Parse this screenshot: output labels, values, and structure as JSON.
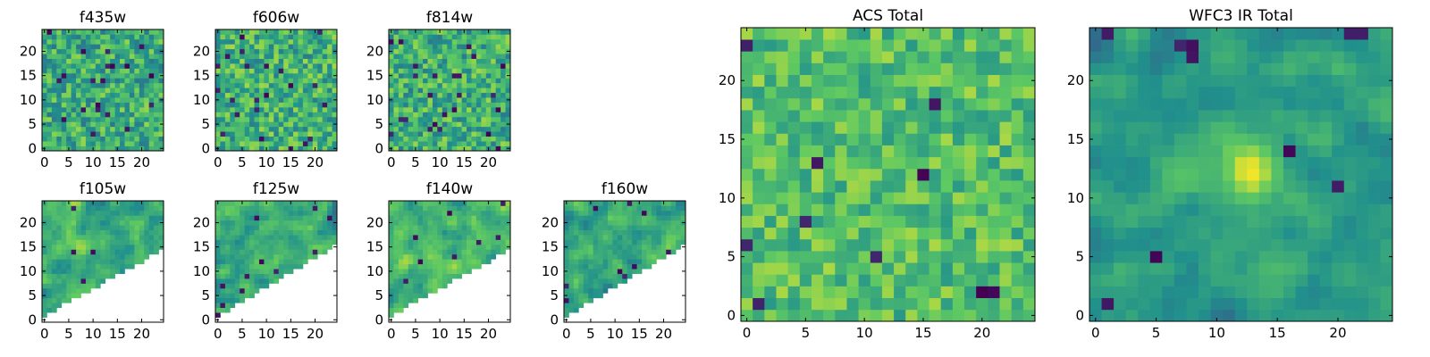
{
  "figure": {
    "colormap": "viridis",
    "colormap_stops": [
      "#440154",
      "#3b528b",
      "#21918c",
      "#5ec962",
      "#fde725"
    ]
  },
  "chart_data": [
    {
      "type": "heatmap",
      "title": "f435w",
      "grid": [
        25,
        25
      ],
      "xticks": [
        0,
        5,
        10,
        15,
        20
      ],
      "yticks": [
        0,
        5,
        10,
        15,
        20
      ],
      "seed": 11,
      "mean": 0.62,
      "noise": 0.22,
      "smooth": 0,
      "dark_fraction": 0.03,
      "mask": "none"
    },
    {
      "type": "heatmap",
      "title": "f606w",
      "grid": [
        25,
        25
      ],
      "xticks": [
        0,
        5,
        10,
        15,
        20
      ],
      "yticks": [
        0,
        5,
        10,
        15,
        20
      ],
      "seed": 23,
      "mean": 0.64,
      "noise": 0.22,
      "smooth": 0,
      "dark_fraction": 0.035,
      "mask": "none"
    },
    {
      "type": "heatmap",
      "title": "f814w",
      "grid": [
        25,
        25
      ],
      "xticks": [
        0,
        5,
        10,
        15,
        20
      ],
      "yticks": [
        0,
        5,
        10,
        15,
        20
      ],
      "seed": 37,
      "mean": 0.63,
      "noise": 0.22,
      "smooth": 0,
      "dark_fraction": 0.03,
      "mask": "none"
    },
    {
      "type": "heatmap",
      "title": "f105w",
      "grid": [
        25,
        25
      ],
      "xticks": [
        0,
        5,
        10,
        15,
        20
      ],
      "yticks": [
        0,
        5,
        10,
        15,
        20
      ],
      "seed": 41,
      "mean": 0.62,
      "noise": 0.2,
      "smooth": 1,
      "dark_fraction": 0.015,
      "mask": "lower-right-triangle",
      "mask_line": [
        [
          0,
          1
        ],
        [
          25,
          15
        ]
      ]
    },
    {
      "type": "heatmap",
      "title": "f125w",
      "grid": [
        25,
        25
      ],
      "xticks": [
        0,
        5,
        10,
        15,
        20
      ],
      "yticks": [
        0,
        5,
        10,
        15,
        20
      ],
      "seed": 53,
      "mean": 0.62,
      "noise": 0.2,
      "smooth": 1,
      "dark_fraction": 0.02,
      "mask": "lower-right-triangle",
      "mask_line": [
        [
          0,
          1
        ],
        [
          25,
          16
        ]
      ]
    },
    {
      "type": "heatmap",
      "title": "f140w",
      "grid": [
        25,
        25
      ],
      "xticks": [
        0,
        5,
        10,
        15,
        20
      ],
      "yticks": [
        0,
        5,
        10,
        15,
        20
      ],
      "seed": 67,
      "mean": 0.66,
      "noise": 0.2,
      "smooth": 1,
      "dark_fraction": 0.01,
      "mask": "lower-right-triangle",
      "mask_line": [
        [
          0,
          1
        ],
        [
          25,
          15
        ]
      ]
    },
    {
      "type": "heatmap",
      "title": "f160w",
      "grid": [
        25,
        25
      ],
      "xticks": [
        0,
        5,
        10,
        15,
        20
      ],
      "yticks": [
        0,
        5,
        10,
        15,
        20
      ],
      "seed": 79,
      "mean": 0.6,
      "noise": 0.2,
      "smooth": 1,
      "dark_fraction": 0.015,
      "mask": "lower-right-triangle",
      "mask_line": [
        [
          0,
          1
        ],
        [
          25,
          16
        ]
      ]
    },
    {
      "type": "heatmap",
      "title": "ACS Total",
      "grid": [
        25,
        25
      ],
      "xticks": [
        0,
        5,
        10,
        15,
        20
      ],
      "yticks": [
        0,
        5,
        10,
        15,
        20
      ],
      "seed": 97,
      "mean": 0.7,
      "noise": 0.17,
      "smooth": 0,
      "dark_fraction": 0.02,
      "mask": "none"
    },
    {
      "type": "heatmap",
      "title": "WFC3 IR Total",
      "grid": [
        25,
        25
      ],
      "xticks": [
        0,
        5,
        10,
        15,
        20
      ],
      "yticks": [
        0,
        5,
        10,
        15,
        20
      ],
      "seed": 103,
      "mean": 0.55,
      "noise": 0.13,
      "smooth": 1,
      "dark_fraction": 0.01,
      "mask": "none",
      "bright_source": {
        "x": 12.5,
        "y": 12,
        "sigma": 2.0,
        "peak": 0.45
      }
    }
  ]
}
